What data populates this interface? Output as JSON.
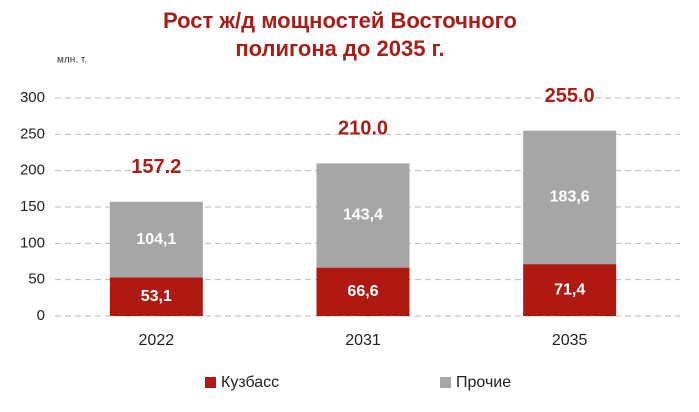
{
  "chart_data": {
    "type": "stacked_bar",
    "title": [
      "Рост ж/д мощностей Восточного",
      "полигона до 2035 г."
    ],
    "y_axis_label": "млн. т.",
    "categories": [
      "2022",
      "2031",
      "2035"
    ],
    "series": [
      {
        "name": "Кузбасс",
        "color": "#b01812",
        "values": [
          53.1,
          66.6,
          71.4
        ],
        "value_labels": [
          "53,1",
          "66,6",
          "71,4"
        ]
      },
      {
        "name": "Прочие",
        "color": "#a6a6a6",
        "values": [
          104.1,
          143.4,
          183.6
        ],
        "value_labels": [
          "104,1",
          "143,4",
          "183,6"
        ]
      }
    ],
    "totals": [
      157.2,
      210,
      255
    ],
    "total_labels": [
      "157.2",
      "210.0",
      "255.0"
    ],
    "total_color": "#a81e18",
    "ylim": [
      0,
      300
    ],
    "yticks": [
      0,
      50,
      100,
      150,
      200,
      250,
      300
    ],
    "grid": true,
    "legend": "bottom"
  }
}
